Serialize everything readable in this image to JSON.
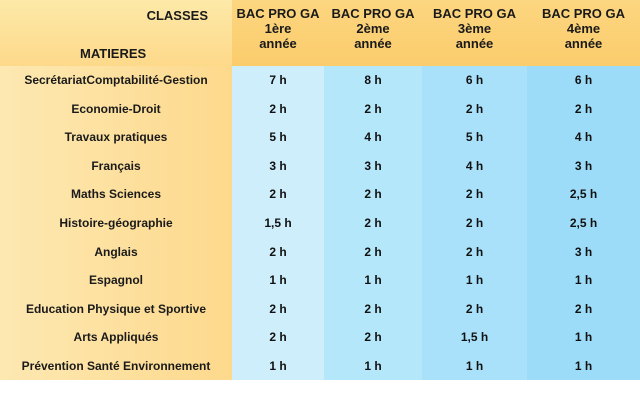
{
  "header": {
    "classes_label": "CLASSES",
    "matieres_label": "MATIERES",
    "columns": [
      {
        "line1": "BAC PRO GA",
        "line2": "1ère",
        "line3": "année"
      },
      {
        "line1": "BAC PRO GA",
        "line2": "2ème",
        "line3": "année"
      },
      {
        "line1": "BAC PRO GA",
        "line2": "3ème",
        "line3": "année"
      },
      {
        "line1": "BAC PRO GA",
        "line2": "4ème",
        "line3": "année"
      }
    ]
  },
  "rows": [
    {
      "subject": "SecrétariatComptabilité-Gestion",
      "values": [
        "7 h",
        "8 h",
        "6 h",
        "6 h"
      ]
    },
    {
      "subject": "Economie-Droit",
      "values": [
        "2 h",
        "2 h",
        "2 h",
        "2 h"
      ]
    },
    {
      "subject": "Travaux pratiques",
      "values": [
        "5 h",
        "4 h",
        "5 h",
        "4 h"
      ]
    },
    {
      "subject": "Français",
      "values": [
        "3 h",
        "3 h",
        "4 h",
        "3 h"
      ]
    },
    {
      "subject": "Maths Sciences",
      "values": [
        "2 h",
        "2 h",
        "2 h",
        "2,5 h"
      ]
    },
    {
      "subject": "Histoire-géographie",
      "values": [
        "1,5 h",
        "2 h",
        "2 h",
        "2,5 h"
      ]
    },
    {
      "subject": "Anglais",
      "values": [
        "2 h",
        "2 h",
        "2 h",
        "3 h"
      ]
    },
    {
      "subject": "Espagnol",
      "values": [
        "1 h",
        "1 h",
        "1 h",
        "1 h"
      ]
    },
    {
      "subject": "Education Physique et Sportive",
      "values": [
        "2 h",
        "2 h",
        "2 h",
        "2 h"
      ]
    },
    {
      "subject": "Arts Appliqués",
      "values": [
        "2 h",
        "2 h",
        "1,5 h",
        "1 h"
      ]
    },
    {
      "subject": "Prévention Santé Environnement",
      "values": [
        "1 h",
        "1 h",
        "1 h",
        "1 h"
      ]
    }
  ]
}
